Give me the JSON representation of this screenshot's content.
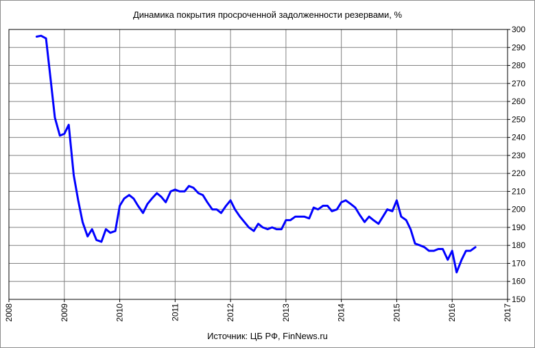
{
  "chart_data": {
    "type": "line",
    "title": "Динамика покрытия просроченной задолженности резервами, %",
    "source": "Источник: ЦБ РФ, FinNews.ru",
    "x_ticks": [
      "2008",
      "2009",
      "2010",
      "2011",
      "2012",
      "2013",
      "2014",
      "2015",
      "2016",
      "2017"
    ],
    "y_ticks": [
      "150",
      "160",
      "170",
      "180",
      "190",
      "200",
      "210",
      "220",
      "230",
      "240",
      "250",
      "260",
      "270",
      "280",
      "290",
      "300"
    ],
    "xlim": [
      2008,
      2017
    ],
    "ylim": [
      150,
      300
    ],
    "grid": true,
    "line_color": "#0000ff",
    "series": [
      {
        "x": [
          2008.5,
          2008.58,
          2008.67,
          2008.75,
          2008.83,
          2008.92,
          2009.0,
          2009.08,
          2009.17,
          2009.25,
          2009.33,
          2009.42,
          2009.5,
          2009.58,
          2009.67,
          2009.75,
          2009.83,
          2009.92,
          2010.0,
          2010.08,
          2010.17,
          2010.25,
          2010.33,
          2010.42,
          2010.5,
          2010.58,
          2010.67,
          2010.75,
          2010.83,
          2010.92,
          2011.0,
          2011.08,
          2011.17,
          2011.25,
          2011.33,
          2011.42,
          2011.5,
          2011.58,
          2011.67,
          2011.75,
          2011.83,
          2011.92,
          2012.0,
          2012.08,
          2012.17,
          2012.25,
          2012.33,
          2012.42,
          2012.5,
          2012.58,
          2012.67,
          2012.75,
          2012.83,
          2012.92,
          2013.0,
          2013.08,
          2013.17,
          2013.25,
          2013.33,
          2013.42,
          2013.5,
          2013.58,
          2013.67,
          2013.75,
          2013.83,
          2013.92,
          2014.0,
          2014.08,
          2014.17,
          2014.25,
          2014.33,
          2014.42,
          2014.5,
          2014.58,
          2014.67,
          2014.75,
          2014.83,
          2014.92,
          2015.0,
          2015.08,
          2015.17,
          2015.25,
          2015.33,
          2015.42,
          2015.5,
          2015.58,
          2015.67,
          2015.75,
          2015.83,
          2015.92,
          2016.0,
          2016.08,
          2016.17,
          2016.25,
          2016.33,
          2016.42
        ],
        "values": [
          296,
          296.5,
          295,
          273,
          251,
          241,
          242,
          247,
          219,
          205,
          193,
          185,
          189,
          183,
          182,
          189,
          187,
          188,
          202,
          206,
          208,
          206,
          202,
          198,
          203,
          206,
          209,
          207,
          204,
          210,
          211,
          210,
          210,
          213,
          212,
          209,
          208,
          204,
          200,
          200,
          198,
          202,
          205,
          200,
          196,
          193,
          190,
          188,
          192,
          190,
          189,
          190,
          189,
          189,
          194,
          194,
          196,
          196,
          196,
          195,
          201,
          200,
          202,
          202,
          199,
          200,
          204,
          205,
          203,
          201,
          197,
          193,
          196,
          194,
          192,
          196,
          200,
          199,
          205,
          196,
          194,
          189,
          181,
          180,
          179,
          177,
          177,
          178,
          178,
          172,
          177,
          165,
          172,
          177,
          177,
          179
        ]
      }
    ]
  }
}
